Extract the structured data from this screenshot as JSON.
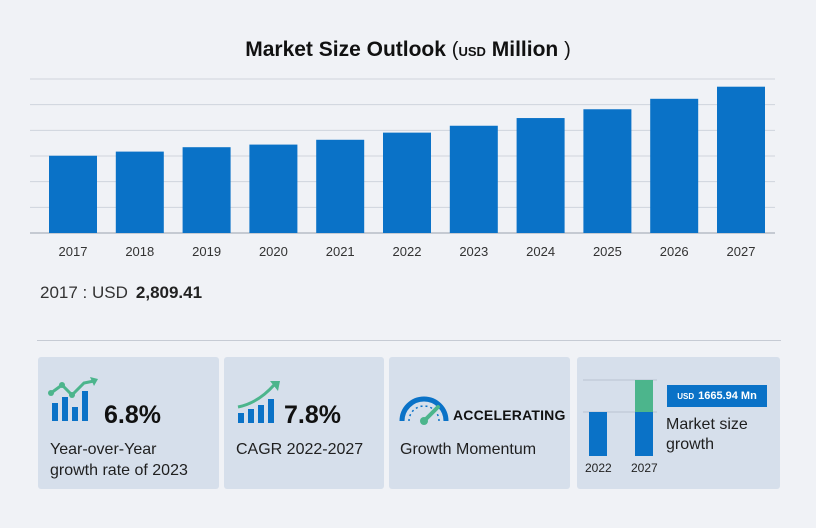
{
  "title": {
    "main": "Market Size Outlook",
    "open": "(",
    "unit": "USD",
    "unit_word": "Million",
    "close": ")"
  },
  "base": {
    "year_label": "2017 : USD",
    "value": "2,809.41"
  },
  "chart_data": {
    "type": "bar",
    "title": "Market Size Outlook (USD Million)",
    "categories": [
      "2017",
      "2018",
      "2019",
      "2020",
      "2021",
      "2022",
      "2023",
      "2024",
      "2025",
      "2026",
      "2027"
    ],
    "values": [
      2809.41,
      2960,
      3120,
      3215,
      3390,
      3650,
      3900,
      4180,
      4500,
      4880,
      5320
    ],
    "ylim": [
      0,
      5600
    ],
    "gridlines": 6,
    "grid": true,
    "bar_color": "#0a72c7"
  },
  "cards": [
    {
      "value": "6.8%",
      "text1": "Year-over-Year",
      "text2": "growth rate of 2023",
      "icon": "bar-growth-icon"
    },
    {
      "value": "7.8%",
      "text1": "CAGR 2022-2027",
      "icon": "trend-up-icon"
    },
    {
      "value": "ACCELERATING",
      "text1": "Growth Momentum",
      "icon": "speedometer-icon"
    },
    {
      "badge_unit": "USD",
      "badge_value": "1665.94 Mn",
      "text1": "Market size",
      "text2": "growth",
      "year_a": "2022",
      "year_b": "2027",
      "color_base": "#0a72c7",
      "color_growth": "#4cb58c"
    }
  ]
}
